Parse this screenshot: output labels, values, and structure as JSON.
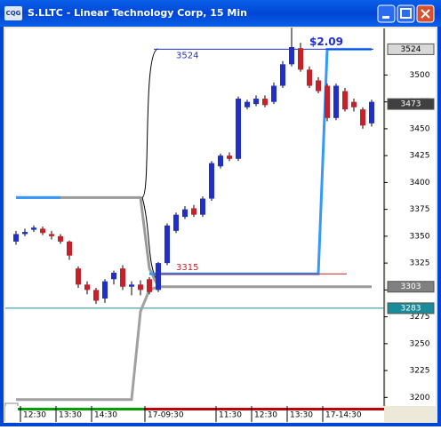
{
  "window": {
    "title": "S.LLTC - Linear Technology Corp, 15 Min"
  },
  "chart_data": {
    "type": "candlestick",
    "open": [
      3345,
      3352,
      3356,
      3357,
      3352,
      3350,
      3345,
      3320,
      3305,
      3300,
      3292,
      3310,
      3320,
      3303,
      3305,
      3310,
      3300,
      3325,
      3355,
      3368,
      3376,
      3370,
      3385,
      3415,
      3425,
      3422,
      3470,
      3473,
      3478,
      3475,
      3490,
      3510,
      3525,
      3505,
      3495,
      3490,
      3460,
      3485,
      3475,
      3468,
      3455
    ],
    "high": [
      3355,
      3357,
      3360,
      3359,
      3355,
      3352,
      3346,
      3322,
      3308,
      3302,
      3310,
      3318,
      3323,
      3308,
      3309,
      3312,
      3326,
      3362,
      3372,
      3378,
      3379,
      3387,
      3420,
      3427,
      3428,
      3480,
      3477,
      3481,
      3481,
      3493,
      3513,
      3544,
      3530,
      3508,
      3498,
      3492,
      3492,
      3488,
      3478,
      3470,
      3477
    ],
    "low": [
      3342,
      3350,
      3354,
      3351,
      3347,
      3343,
      3328,
      3302,
      3296,
      3287,
      3288,
      3305,
      3300,
      3295,
      3295,
      3296,
      3298,
      3323,
      3353,
      3366,
      3368,
      3368,
      3383,
      3413,
      3420,
      3420,
      3468,
      3471,
      3470,
      3473,
      3488,
      3508,
      3503,
      3488,
      3483,
      3457,
      3458,
      3466,
      3466,
      3450,
      3452
    ],
    "close": [
      3352,
      3354,
      3358,
      3353,
      3350,
      3345,
      3332,
      3305,
      3300,
      3290,
      3308,
      3316,
      3303,
      3305,
      3300,
      3298,
      3325,
      3360,
      3370,
      3375,
      3370,
      3385,
      3418,
      3425,
      3422,
      3478,
      3475,
      3478,
      3472,
      3490,
      3510,
      3526,
      3505,
      3490,
      3485,
      3460,
      3490,
      3468,
      3470,
      3453,
      3475
    ],
    "up_color": "#1f2fc8",
    "down_color": "#c8202a",
    "series": [
      {
        "color": "#9a9a9a",
        "values": [
          3386,
          3386,
          3386,
          3386,
          3386,
          3386,
          3386,
          3386,
          3386,
          3386,
          3386,
          3386,
          3386,
          3386,
          3386,
          3320,
          3303,
          3303,
          3303,
          3303,
          3303,
          3303,
          3303,
          3303,
          3303,
          3303,
          3303,
          3303,
          3303,
          3303,
          3303,
          3303,
          3303,
          3303,
          3303,
          3303,
          3303,
          3303,
          3303,
          3303,
          3303
        ]
      },
      {
        "color": "#a0a0a0",
        "values": [
          3198,
          3198,
          3198,
          3198,
          3198,
          3198,
          3198,
          3198,
          3198,
          3198,
          3198,
          3198,
          3198,
          3198,
          3280,
          3300,
          3303,
          null,
          null,
          null,
          null,
          null,
          null,
          null,
          null,
          null,
          null,
          null,
          null,
          null,
          null,
          null,
          null,
          null,
          null,
          null,
          null,
          null,
          null,
          null,
          null
        ]
      },
      {
        "color": "#3399ff",
        "values": [
          3386,
          3386,
          3386,
          3386,
          3386,
          3386,
          null,
          null,
          null,
          null,
          null,
          null,
          null,
          null,
          null,
          3315,
          3315,
          3315,
          3315,
          3315,
          3315,
          3315,
          3315,
          3315,
          3315,
          3315,
          3315,
          3315,
          3315,
          3315,
          3315,
          3315,
          3315,
          3315,
          3315,
          3524,
          3524,
          3524,
          3524,
          3524,
          3524
        ]
      }
    ],
    "high_level": 3524,
    "low_level": 3315,
    "range_label": "$2.09",
    "last_line": 3283,
    "price_markers": [
      {
        "value": 3524,
        "color": "#d8d8d8"
      },
      {
        "value": 3473,
        "color": "#404040"
      },
      {
        "value": 3303,
        "color": "#808080"
      },
      {
        "value": 3283,
        "color": "#1a8c99"
      }
    ],
    "ylim": [
      3192,
      3545
    ],
    "yticks": [
      3200,
      3225,
      3250,
      3275,
      3300,
      3325,
      3350,
      3375,
      3400,
      3425,
      3450,
      3475,
      3500
    ],
    "xticks": [
      {
        "value": 1,
        "label": "12:30"
      },
      {
        "value": 5,
        "label": "13:30"
      },
      {
        "value": 9,
        "label": "14:30"
      },
      {
        "value": 15,
        "label": "17-09:30"
      },
      {
        "value": 23,
        "label": "11:30"
      },
      {
        "value": 27,
        "label": "12:30"
      },
      {
        "value": 31,
        "label": "13:30"
      },
      {
        "value": 35,
        "label": "17-14:30"
      }
    ]
  }
}
